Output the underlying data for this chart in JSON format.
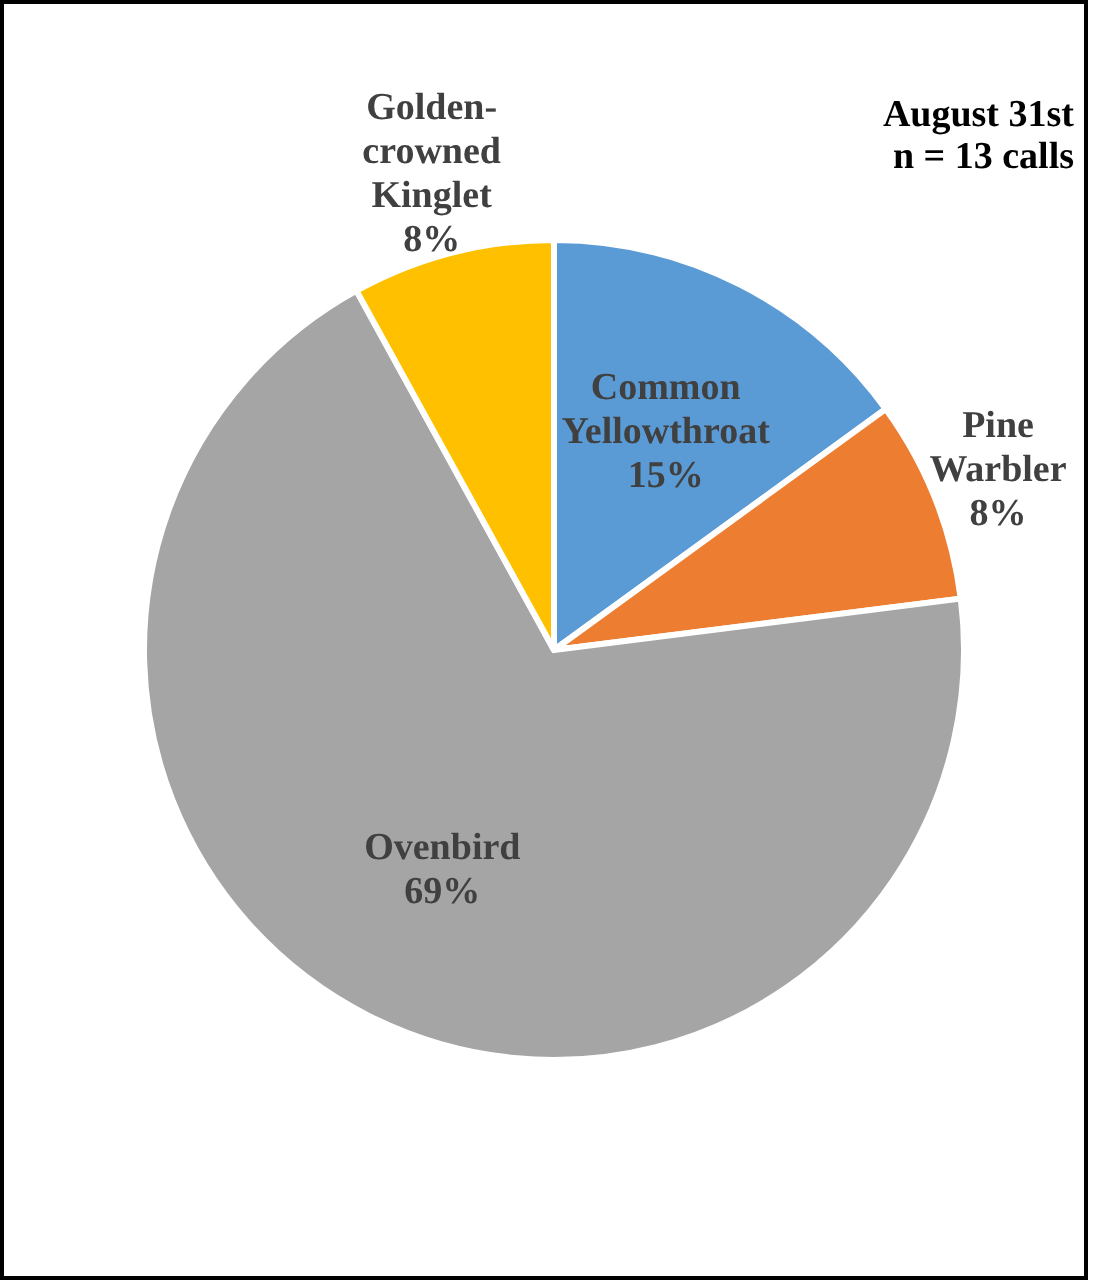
{
  "chart_data": {
    "type": "pie",
    "title": "August 31st",
    "subtitle": "n = 13 calls",
    "categories": [
      "Common Yellowthroat",
      "Pine Warbler",
      "Ovenbird",
      "Golden-crowned Kinglet"
    ],
    "values": [
      15,
      8,
      69,
      8
    ],
    "colors": [
      "#5b9bd5",
      "#ed7d31",
      "#a5a5a5",
      "#ffc000"
    ],
    "value_labels": [
      "15%",
      "8%",
      "69%",
      "8%"
    ]
  }
}
